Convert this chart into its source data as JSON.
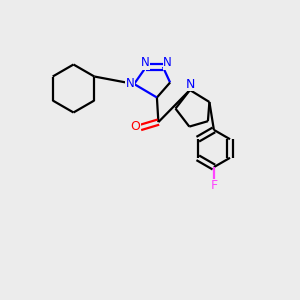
{
  "background_color": "#ECECEC",
  "bond_color": "#000000",
  "N_color": "#0000FF",
  "O_color": "#FF0000",
  "F_color": "#FF44FF",
  "line_width": 1.6,
  "figsize": [
    3.0,
    3.0
  ],
  "dpi": 100,
  "xlim": [
    0,
    10
  ],
  "ylim": [
    0,
    10
  ]
}
